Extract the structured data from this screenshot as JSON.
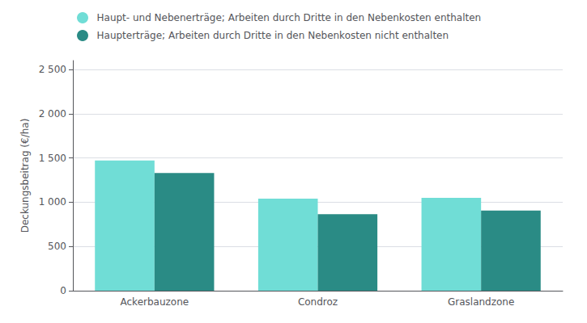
{
  "chart_data": {
    "type": "bar",
    "categories": [
      "Ackerbauzone",
      "Condroz",
      "Graslandzone"
    ],
    "series": [
      {
        "name": "Haupt- und Nebenerträge; Arbeiten durch Dritte in den Nebenkosten enthalten",
        "color": "#70DDD6",
        "values": [
          1470,
          1040,
          1050
        ]
      },
      {
        "name": "Haupterträge; Arbeiten durch Dritte in den Nebenkosten nicht enthalten",
        "color": "#2A8B85",
        "values": [
          1330,
          865,
          905
        ]
      }
    ],
    "ylabel": "Deckungsbeitrag (€/ha)",
    "ylim": [
      0,
      2600
    ],
    "yticks": [
      0,
      500,
      {
        "value": 1000,
        "label": "1 000"
      },
      {
        "value": 1500,
        "label": "1 500"
      },
      {
        "value": 2000,
        "label": "2 000"
      },
      {
        "value": 2500,
        "label": "2 500"
      }
    ],
    "grid": true,
    "legend": "top-left"
  }
}
